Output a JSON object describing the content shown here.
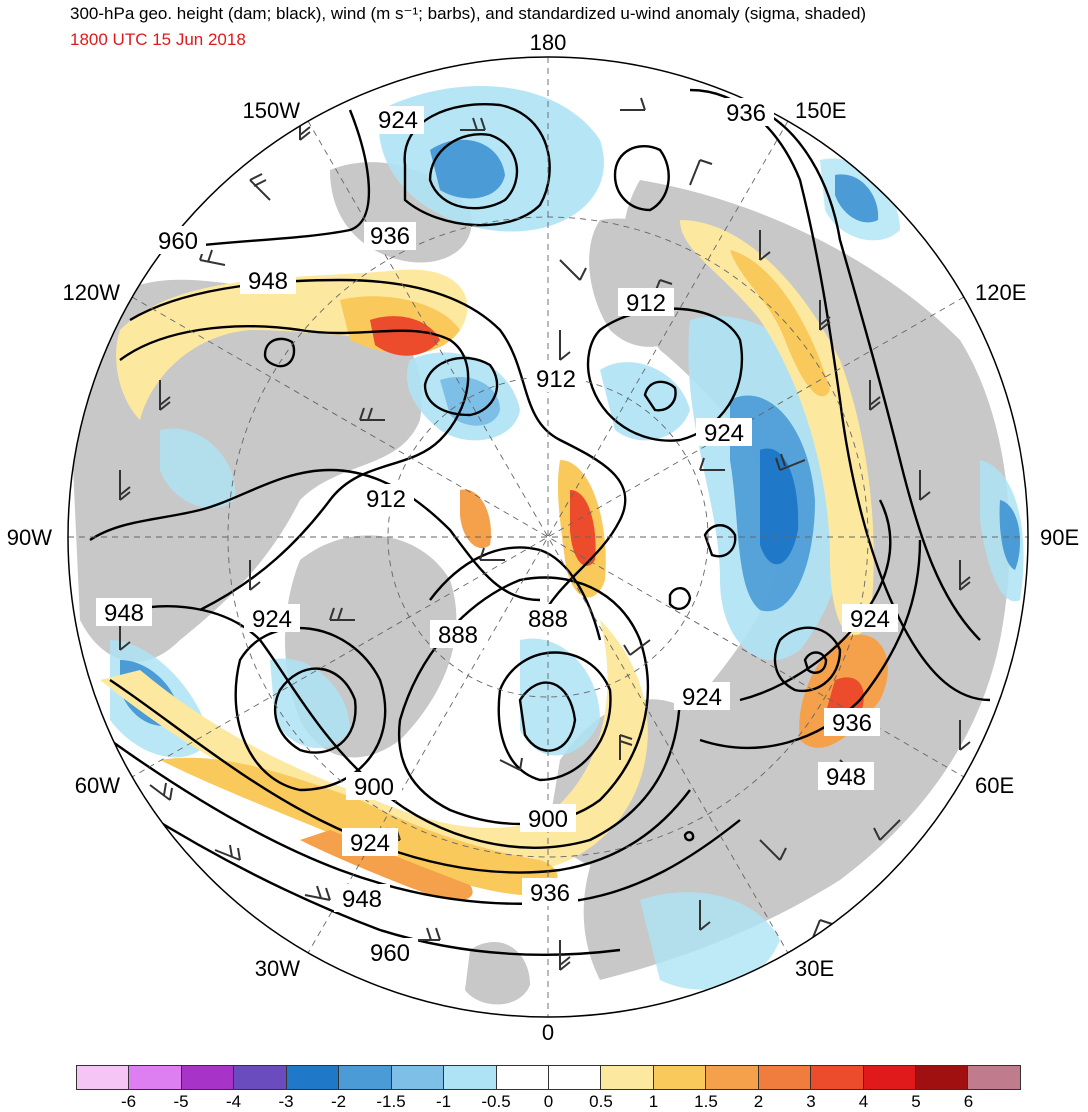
{
  "title": "300-hPa geo. height (dam; black), wind (m s⁻¹; barbs), and standardized u-wind anomaly (sigma, shaded)",
  "subtitle": "1800 UTC 15 Jun 2018",
  "colors": {
    "subtitle": "#e0191b",
    "land": "#c8c8c8",
    "ocean": "#ffffff",
    "contour": "#000000"
  },
  "longitude_labels": {
    "top": "180",
    "top_right": "150E",
    "upper_right": "120E",
    "right": "90E",
    "lower_right": "60E",
    "bottom_right": "30E",
    "bottom": "0",
    "bottom_left": "30W",
    "lower_left": "60W",
    "left": "90W",
    "upper_left": "120W",
    "top_left": "150W"
  },
  "contour_labels": [
    "924",
    "936",
    "960",
    "948",
    "936",
    "912",
    "912",
    "912",
    "924",
    "924",
    "924",
    "948",
    "924",
    "888",
    "888",
    "900",
    "900",
    "924",
    "948",
    "936",
    "960",
    "936",
    "948"
  ],
  "colorbar": {
    "colors": [
      "#f5c6f5",
      "#dd7ff0",
      "#a833c8",
      "#6a4cbf",
      "#1f78c8",
      "#4a9bd6",
      "#7ebfe8",
      "#aee3f5",
      "#ffffff",
      "#ffffff",
      "#fde8a0",
      "#f9c95c",
      "#f5a04a",
      "#f07c3e",
      "#ec4b2c",
      "#e0191b",
      "#a01010",
      "#c07c8c"
    ],
    "ticks": [
      "-6",
      "-5",
      "-4",
      "-3",
      "-2",
      "-1.5",
      "-1",
      "-0.5",
      "0",
      "0.5",
      "1",
      "1.5",
      "2",
      "3",
      "4",
      "5",
      "6"
    ]
  }
}
